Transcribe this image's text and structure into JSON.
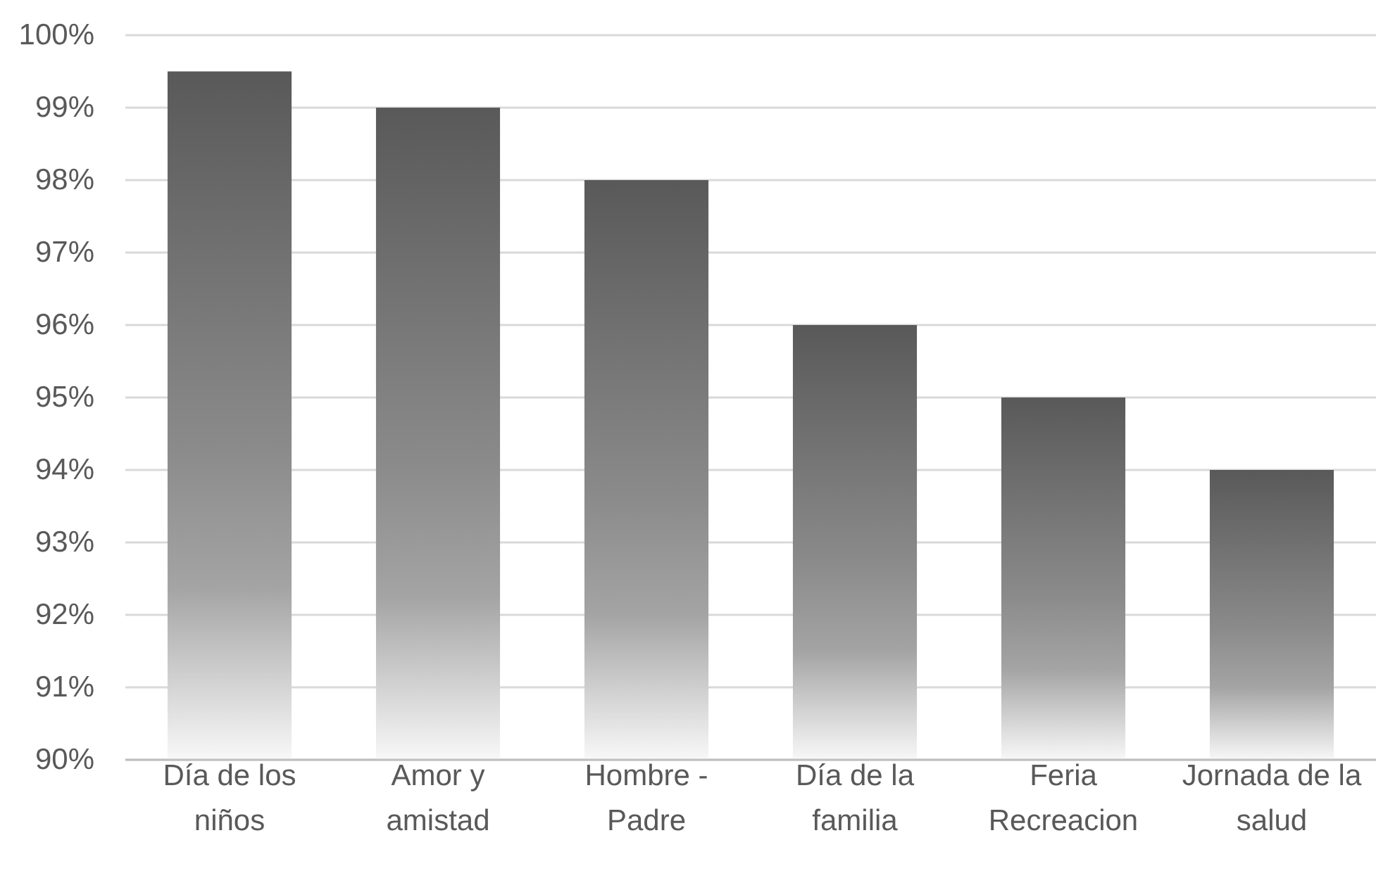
{
  "chart_data": {
    "type": "bar",
    "categories": [
      "Día de los niños",
      "Amor y amistad",
      "Hombre - Padre",
      "Día de la familia",
      "Feria Recreacion",
      "Jornada de la salud"
    ],
    "values": [
      99.5,
      99,
      98,
      96,
      95,
      94
    ],
    "color": "#595959",
    "ylim": [
      90,
      100
    ],
    "yticks": [
      {
        "value": 90,
        "label": "90%"
      },
      {
        "value": 91,
        "label": "91%"
      },
      {
        "value": 92,
        "label": "92%"
      },
      {
        "value": 93,
        "label": "93%"
      },
      {
        "value": 94,
        "label": "94%"
      },
      {
        "value": 95,
        "label": "95%"
      },
      {
        "value": 96,
        "label": "96%"
      },
      {
        "value": 97,
        "label": "97%"
      },
      {
        "value": 98,
        "label": "98%"
      },
      {
        "value": 99,
        "label": "99%"
      },
      {
        "value": 100,
        "label": "100%"
      }
    ],
    "grid": "y"
  }
}
